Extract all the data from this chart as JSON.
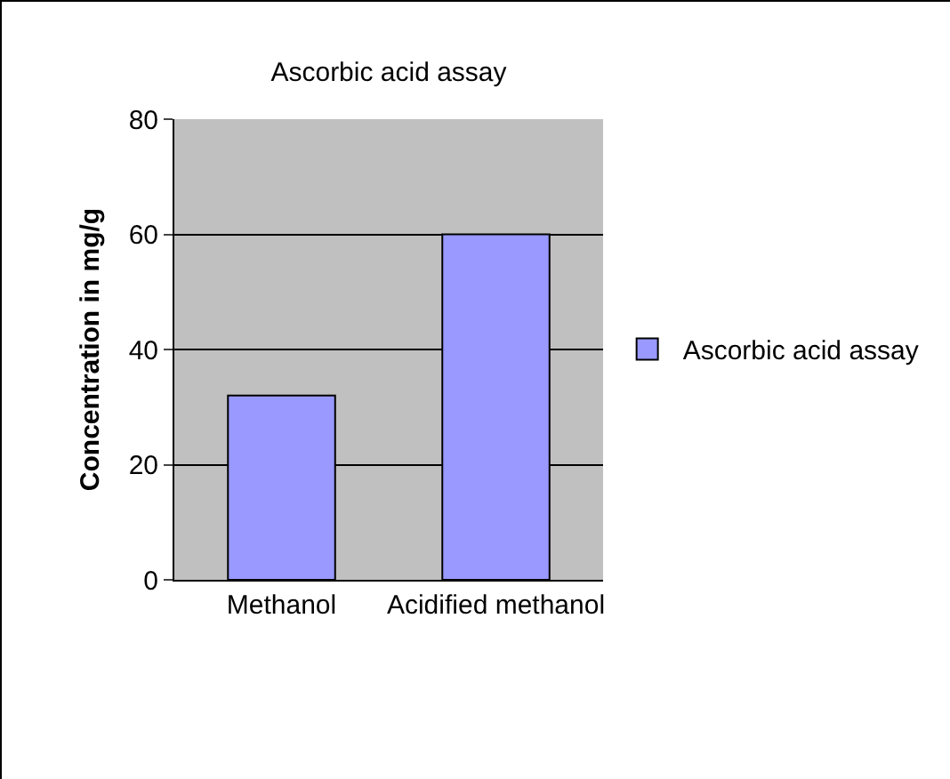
{
  "chart_data": {
    "type": "bar",
    "title": "Ascorbic acid assay",
    "ylabel": "Concentration in mg/g",
    "categories": [
      "Methanol",
      "Acidified methanol"
    ],
    "series": [
      {
        "name": "Ascorbic acid assay",
        "color": "#9999ff",
        "values": [
          32,
          60
        ]
      }
    ],
    "ylim": [
      0,
      80
    ],
    "yticks": [
      0,
      20,
      40,
      60,
      80
    ],
    "grid": "y",
    "legend": "right"
  }
}
